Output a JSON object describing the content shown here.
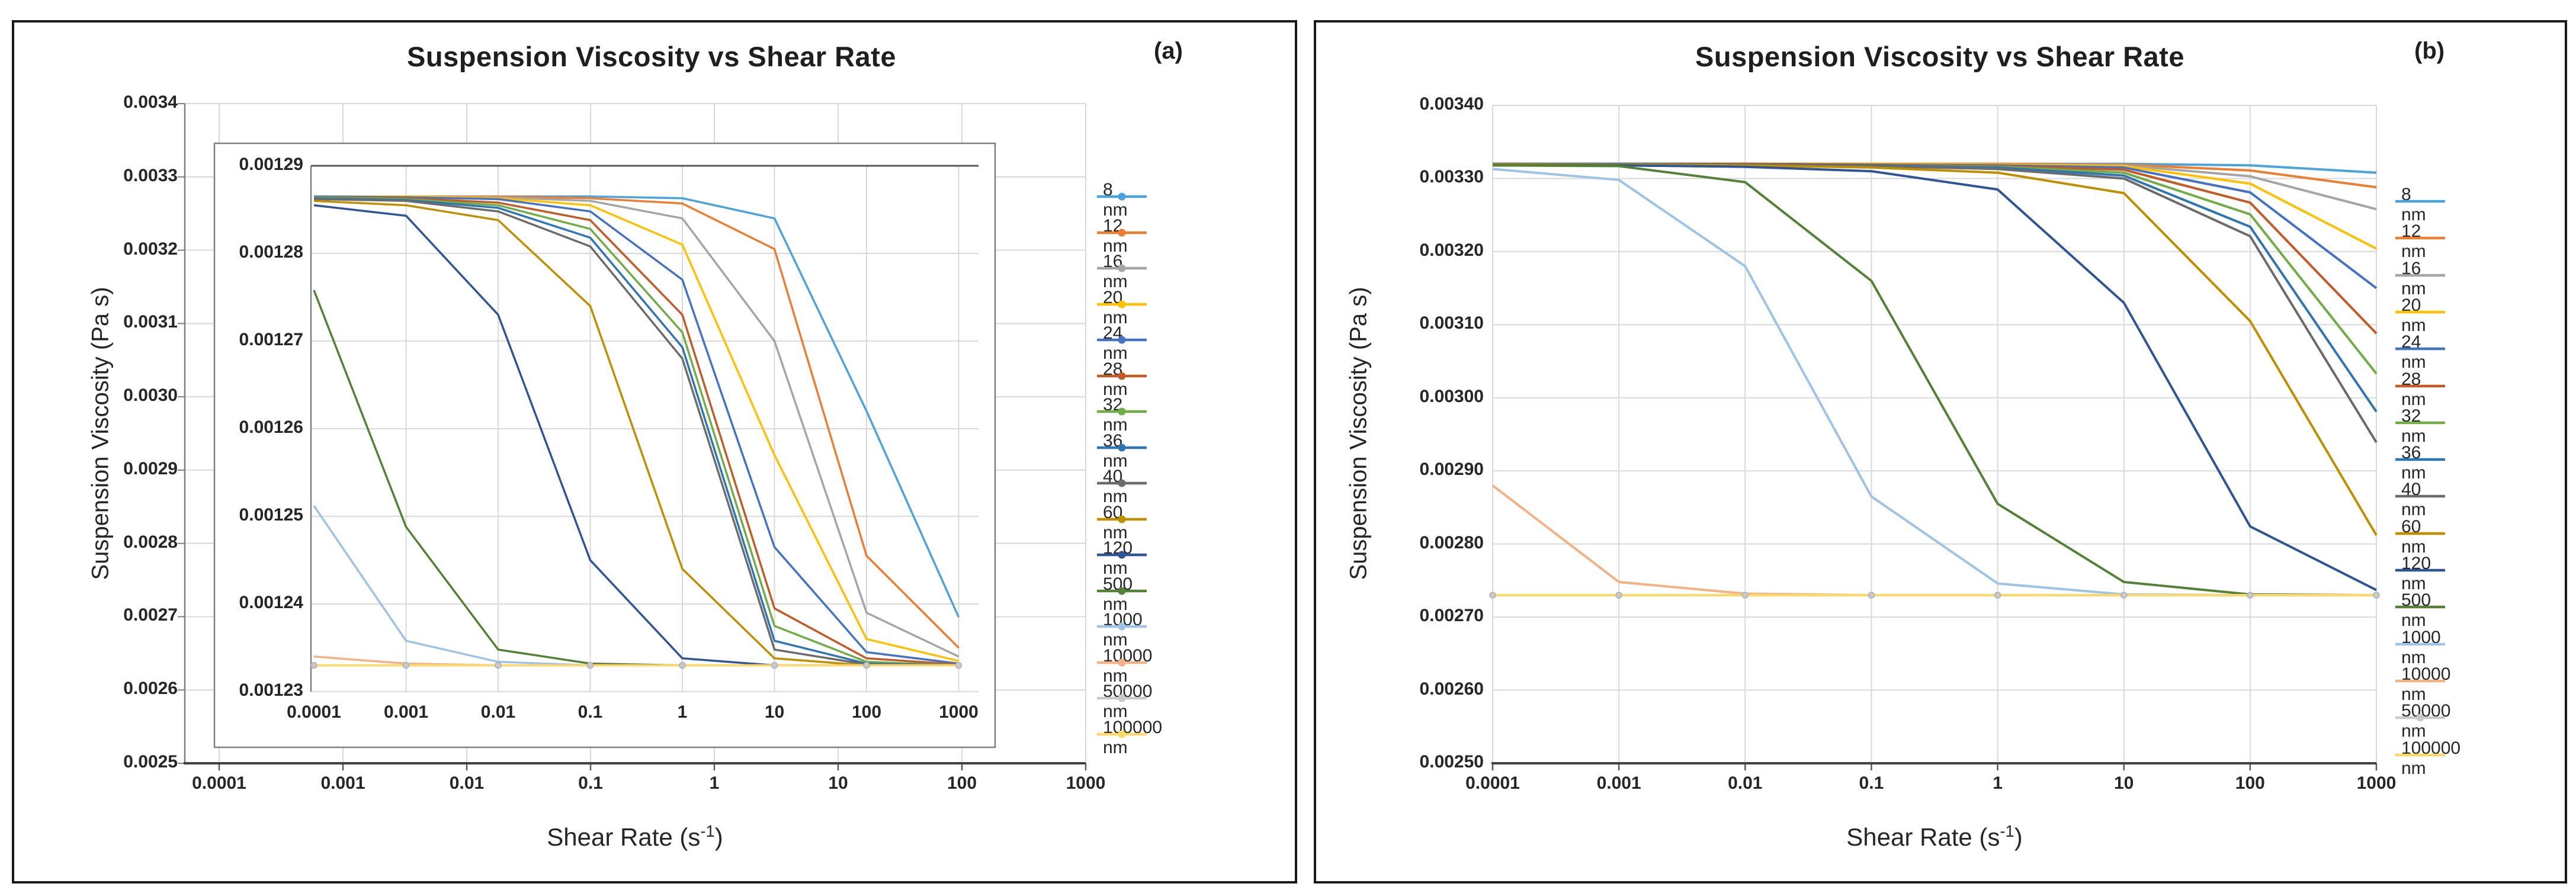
{
  "figure": {
    "background": "#FFFFFF",
    "panel_border_color": "#1A1A1A",
    "gridline_color": "#D9D9D9",
    "axis_line_color": "#595959",
    "inset_border_color": "#7F7F7F"
  },
  "panel_a": {
    "title": "Suspension Viscosity vs Shear Rate",
    "corner_label": "(a)",
    "y_axis_title": "Suspension Viscosity (Pa s)",
    "x_axis_title": {
      "pre": "Shear Rate (s",
      "sup": "-1",
      "post": ")"
    },
    "y_ticks": [
      "0.0034",
      "0.0033",
      "0.0032",
      "0.0031",
      "0.0030",
      "0.0029",
      "0.0028",
      "0.0027",
      "0.0026",
      "0.0025"
    ],
    "x_ticks": [
      "0.0001",
      "0.001",
      "0.01",
      "0.1",
      "1",
      "10",
      "100",
      "1000"
    ],
    "inset": {
      "y_ticks": [
        "0.00129",
        "0.00128",
        "0.00127",
        "0.00126",
        "0.00125",
        "0.00124",
        "0.00123"
      ],
      "x_ticks": [
        "0.0001",
        "0.001",
        "0.01",
        "0.1",
        "1",
        "10",
        "100",
        "1000"
      ]
    }
  },
  "panel_b": {
    "title": "Suspension Viscosity vs Shear Rate",
    "corner_label": "(b)",
    "y_axis_title": "Suspension Viscosity (Pa s)",
    "x_axis_title": {
      "pre": "Shear Rate (s",
      "sup": "-1",
      "post": ")"
    },
    "y_ticks": [
      "0.00340",
      "0.00330",
      "0.00320",
      "0.00310",
      "0.00300",
      "0.00290",
      "0.00280",
      "0.00270",
      "0.00260",
      "0.00250"
    ],
    "x_ticks": [
      "0.0001",
      "0.001",
      "0.01",
      "0.1",
      "1",
      "10",
      "100",
      "1000"
    ]
  },
  "chart_data": [
    {
      "id": "panel_a_inset",
      "type": "line",
      "title": "Suspension Viscosity vs Shear Rate (inset, panel a)",
      "xlabel": "Shear Rate (s^-1)",
      "ylabel": "Suspension Viscosity (Pa s)",
      "x_scale": "log-categorical",
      "x_values": [
        0.0001,
        0.001,
        0.01,
        0.1,
        1,
        10,
        100,
        1000
      ],
      "ylim": [
        0.00123,
        0.00129
      ],
      "y_tick_step": 1e-05,
      "grid": true,
      "legend_position": "outside-right",
      "marker_series": "50000 nm",
      "series": [
        {
          "name": "8 nm",
          "color": "#4BA3DD",
          "values": [
            0.0012865,
            0.0012865,
            0.0012865,
            0.0012865,
            0.0012863,
            0.001284,
            0.001262,
            0.0012385
          ]
        },
        {
          "name": "12 nm",
          "color": "#ED7D31",
          "values": [
            0.0012865,
            0.0012865,
            0.0012865,
            0.0012863,
            0.0012857,
            0.0012805,
            0.0012455,
            0.001235
          ]
        },
        {
          "name": "16 nm",
          "color": "#A5A5A5",
          "values": [
            0.0012865,
            0.0012865,
            0.0012864,
            0.001286,
            0.001284,
            0.00127,
            0.001239,
            0.001234
          ]
        },
        {
          "name": "20 nm",
          "color": "#FFC000",
          "values": [
            0.0012865,
            0.0012865,
            0.0012863,
            0.0012855,
            0.001281,
            0.001257,
            0.001236,
            0.0012335
          ]
        },
        {
          "name": "24 nm",
          "color": "#4472C4",
          "values": [
            0.0012865,
            0.0012864,
            0.0012862,
            0.0012848,
            0.001277,
            0.0012465,
            0.0012345,
            0.0012332
          ]
        },
        {
          "name": "28 nm",
          "color": "#C45A26",
          "values": [
            0.0012864,
            0.0012863,
            0.0012858,
            0.0012838,
            0.001273,
            0.0012395,
            0.0012338,
            0.0012331
          ]
        },
        {
          "name": "32 nm",
          "color": "#70AD47",
          "values": [
            0.0012864,
            0.0012862,
            0.0012855,
            0.0012828,
            0.001271,
            0.0012375,
            0.0012334,
            0.001233
          ]
        },
        {
          "name": "36 nm",
          "color": "#2E75B6",
          "values": [
            0.0012863,
            0.0012861,
            0.0012852,
            0.0012818,
            0.0012693,
            0.0012358,
            0.0012332,
            0.001233
          ]
        },
        {
          "name": "40 nm",
          "color": "#6B6B6B",
          "values": [
            0.0012862,
            0.001286,
            0.0012848,
            0.0012808,
            0.001268,
            0.0012348,
            0.0012331,
            0.001233
          ]
        },
        {
          "name": "60 nm",
          "color": "#BF8F00",
          "values": [
            0.001286,
            0.0012855,
            0.0012838,
            0.001274,
            0.001244,
            0.0012338,
            0.001233,
            0.001233
          ]
        },
        {
          "name": "120 nm",
          "color": "#2F5597",
          "values": [
            0.0012855,
            0.0012843,
            0.001273,
            0.001245,
            0.0012338,
            0.001233,
            0.001233,
            0.001233
          ]
        },
        {
          "name": "500 nm",
          "color": "#538135",
          "values": [
            0.0012758,
            0.0012488,
            0.0012348,
            0.0012332,
            0.001233,
            0.001233,
            0.001233,
            0.001233
          ]
        },
        {
          "name": "1000 nm",
          "color": "#9DC3E6",
          "values": [
            0.0012512,
            0.0012358,
            0.0012334,
            0.001233,
            0.001233,
            0.001233,
            0.001233,
            0.001233
          ]
        },
        {
          "name": "10000 nm",
          "color": "#F4B183",
          "values": [
            0.001234,
            0.0012332,
            0.001233,
            0.001233,
            0.001233,
            0.001233,
            0.001233,
            0.001233
          ]
        },
        {
          "name": "50000 nm",
          "color": "#C9C9C9",
          "values": [
            0.001233,
            0.001233,
            0.001233,
            0.001233,
            0.001233,
            0.001233,
            0.001233,
            0.001233
          ]
        },
        {
          "name": "100000 nm",
          "color": "#FFD966",
          "values": [
            0.001233,
            0.001233,
            0.001233,
            0.001233,
            0.001233,
            0.001233,
            0.001233,
            0.001233
          ]
        }
      ]
    },
    {
      "id": "panel_b",
      "type": "line",
      "title": "Suspension Viscosity vs Shear Rate (panel b)",
      "xlabel": "Shear Rate (s^-1)",
      "ylabel": "Suspension Viscosity (Pa s)",
      "x_scale": "log-categorical",
      "x_values": [
        0.0001,
        0.001,
        0.01,
        0.1,
        1,
        10,
        100,
        1000
      ],
      "ylim": [
        0.0025,
        0.0034
      ],
      "y_tick_step": 0.0001,
      "grid": true,
      "legend_position": "outside-right",
      "marker_series": "50000 nm",
      "series": [
        {
          "name": "8 nm",
          "color": "#4BA3DD",
          "values": [
            0.00332,
            0.00332,
            0.00332,
            0.00332,
            0.00332,
            0.00332,
            0.003318,
            0.003308
          ]
        },
        {
          "name": "12 nm",
          "color": "#ED7D31",
          "values": [
            0.00332,
            0.00332,
            0.00332,
            0.00332,
            0.00332,
            0.003319,
            0.003311,
            0.003288
          ]
        },
        {
          "name": "16 nm",
          "color": "#A5A5A5",
          "values": [
            0.00332,
            0.00332,
            0.00332,
            0.00332,
            0.003319,
            0.003318,
            0.003303,
            0.003258
          ]
        },
        {
          "name": "20 nm",
          "color": "#FFC000",
          "values": [
            0.00332,
            0.00332,
            0.00332,
            0.00332,
            0.003319,
            0.003317,
            0.003293,
            0.003204
          ]
        },
        {
          "name": "24 nm",
          "color": "#4472C4",
          "values": [
            0.00332,
            0.00332,
            0.00332,
            0.003319,
            0.003318,
            0.003315,
            0.003281,
            0.00315
          ]
        },
        {
          "name": "28 nm",
          "color": "#C45A26",
          "values": [
            0.00332,
            0.00332,
            0.00332,
            0.003319,
            0.003317,
            0.003312,
            0.003267,
            0.003088
          ]
        },
        {
          "name": "32 nm",
          "color": "#70AD47",
          "values": [
            0.00332,
            0.00332,
            0.003319,
            0.003318,
            0.003316,
            0.003308,
            0.003251,
            0.003033
          ]
        },
        {
          "name": "36 nm",
          "color": "#2E75B6",
          "values": [
            0.00332,
            0.00332,
            0.003319,
            0.003318,
            0.003315,
            0.003304,
            0.003234,
            0.002981
          ]
        },
        {
          "name": "40 nm",
          "color": "#6B6B6B",
          "values": [
            0.00332,
            0.003319,
            0.003319,
            0.003317,
            0.003313,
            0.0033,
            0.003221,
            0.002939
          ]
        },
        {
          "name": "60 nm",
          "color": "#BF8F00",
          "values": [
            0.003319,
            0.003319,
            0.003318,
            0.003315,
            0.003308,
            0.00328,
            0.003105,
            0.002812
          ]
        },
        {
          "name": "120 nm",
          "color": "#2F5597",
          "values": [
            0.003318,
            0.003318,
            0.003316,
            0.00331,
            0.003285,
            0.00313,
            0.002824,
            0.002737
          ]
        },
        {
          "name": "500 nm",
          "color": "#538135",
          "values": [
            0.003318,
            0.003317,
            0.003295,
            0.00316,
            0.002855,
            0.002748,
            0.002731,
            0.00273
          ]
        },
        {
          "name": "1000 nm",
          "color": "#9DC3E6",
          "values": [
            0.003313,
            0.003298,
            0.00318,
            0.002865,
            0.002746,
            0.002731,
            0.00273,
            0.00273
          ]
        },
        {
          "name": "10000 nm",
          "color": "#F4B183",
          "values": [
            0.00288,
            0.002748,
            0.002732,
            0.00273,
            0.00273,
            0.00273,
            0.00273,
            0.00273
          ]
        },
        {
          "name": "50000 nm",
          "color": "#C9C9C9",
          "values": [
            0.00273,
            0.00273,
            0.00273,
            0.00273,
            0.00273,
            0.00273,
            0.00273,
            0.00273
          ]
        },
        {
          "name": "100000 nm",
          "color": "#FFD966",
          "values": [
            0.00273,
            0.00273,
            0.00273,
            0.00273,
            0.00273,
            0.00273,
            0.00273,
            0.00273
          ]
        }
      ]
    }
  ]
}
